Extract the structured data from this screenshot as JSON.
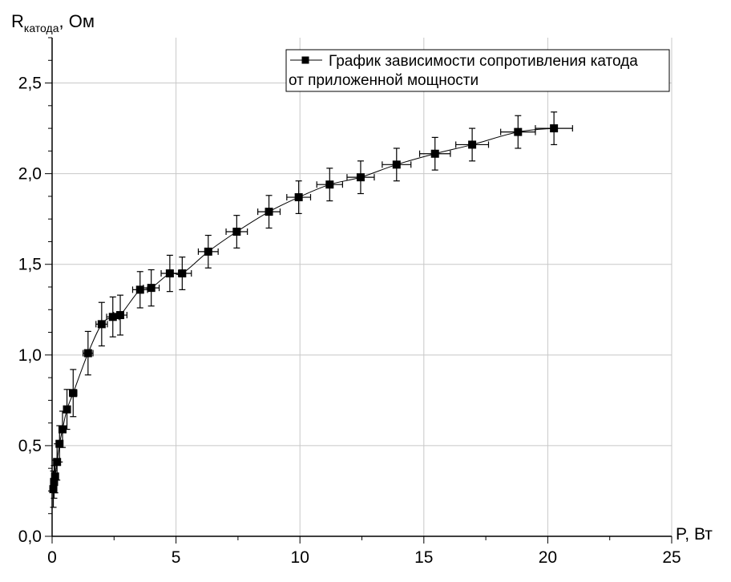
{
  "chart_data": {
    "type": "scatter",
    "ylabel_main": "R",
    "ylabel_sub": "катода",
    "ylabel_tail": ", Ом",
    "xlabel": "P, Вт",
    "xlim": [
      0,
      25
    ],
    "ylim": [
      0,
      2.75
    ],
    "xticks": [
      0,
      5,
      10,
      15,
      20,
      25
    ],
    "xtick_labels": [
      "0",
      "5",
      "10",
      "15",
      "20",
      "25"
    ],
    "yticks": [
      0.0,
      0.5,
      1.0,
      1.5,
      2.0,
      2.5
    ],
    "ytick_labels": [
      "0,0",
      "0,5",
      "1,0",
      "1,5",
      "2,0",
      "2,5"
    ],
    "grid": true,
    "legend_position": "top-right",
    "series": [
      {
        "name": "График зависимости сопротивления катода от приложенной мощности",
        "legend_lines": [
          "График зависимости сопротивления катода",
          "от приложенной мощности"
        ],
        "marker": "square",
        "color": "#000000",
        "points": [
          {
            "x": 0.05,
            "y": 0.26,
            "xerr": 0.02,
            "yerr": 0.1
          },
          {
            "x": 0.08,
            "y": 0.3,
            "xerr": 0.03,
            "yerr": 0.09
          },
          {
            "x": 0.12,
            "y": 0.33,
            "xerr": 0.04,
            "yerr": 0.09
          },
          {
            "x": 0.2,
            "y": 0.41,
            "xerr": 0.05,
            "yerr": 0.1
          },
          {
            "x": 0.3,
            "y": 0.51,
            "xerr": 0.07,
            "yerr": 0.1
          },
          {
            "x": 0.42,
            "y": 0.59,
            "xerr": 0.09,
            "yerr": 0.1
          },
          {
            "x": 0.6,
            "y": 0.7,
            "xerr": 0.11,
            "yerr": 0.11
          },
          {
            "x": 0.85,
            "y": 0.79,
            "xerr": 0.15,
            "yerr": 0.13
          },
          {
            "x": 1.45,
            "y": 1.01,
            "xerr": 0.2,
            "yerr": 0.12
          },
          {
            "x": 2.0,
            "y": 1.17,
            "xerr": 0.23,
            "yerr": 0.12
          },
          {
            "x": 2.45,
            "y": 1.21,
            "xerr": 0.25,
            "yerr": 0.11
          },
          {
            "x": 2.75,
            "y": 1.22,
            "xerr": 0.27,
            "yerr": 0.11
          },
          {
            "x": 3.55,
            "y": 1.36,
            "xerr": 0.3,
            "yerr": 0.1
          },
          {
            "x": 4.0,
            "y": 1.37,
            "xerr": 0.32,
            "yerr": 0.1
          },
          {
            "x": 4.75,
            "y": 1.45,
            "xerr": 0.35,
            "yerr": 0.1
          },
          {
            "x": 5.25,
            "y": 1.45,
            "xerr": 0.37,
            "yerr": 0.09
          },
          {
            "x": 6.3,
            "y": 1.57,
            "xerr": 0.4,
            "yerr": 0.09
          },
          {
            "x": 7.45,
            "y": 1.68,
            "xerr": 0.43,
            "yerr": 0.09
          },
          {
            "x": 8.75,
            "y": 1.79,
            "xerr": 0.45,
            "yerr": 0.09
          },
          {
            "x": 9.95,
            "y": 1.87,
            "xerr": 0.48,
            "yerr": 0.09
          },
          {
            "x": 11.2,
            "y": 1.94,
            "xerr": 0.52,
            "yerr": 0.09
          },
          {
            "x": 12.45,
            "y": 1.98,
            "xerr": 0.55,
            "yerr": 0.09
          },
          {
            "x": 13.9,
            "y": 2.05,
            "xerr": 0.58,
            "yerr": 0.09
          },
          {
            "x": 15.45,
            "y": 2.11,
            "xerr": 0.62,
            "yerr": 0.09
          },
          {
            "x": 16.95,
            "y": 2.16,
            "xerr": 0.66,
            "yerr": 0.09
          },
          {
            "x": 18.8,
            "y": 2.23,
            "xerr": 0.7,
            "yerr": 0.09
          },
          {
            "x": 20.25,
            "y": 2.25,
            "xerr": 0.75,
            "yerr": 0.09
          }
        ]
      }
    ]
  }
}
